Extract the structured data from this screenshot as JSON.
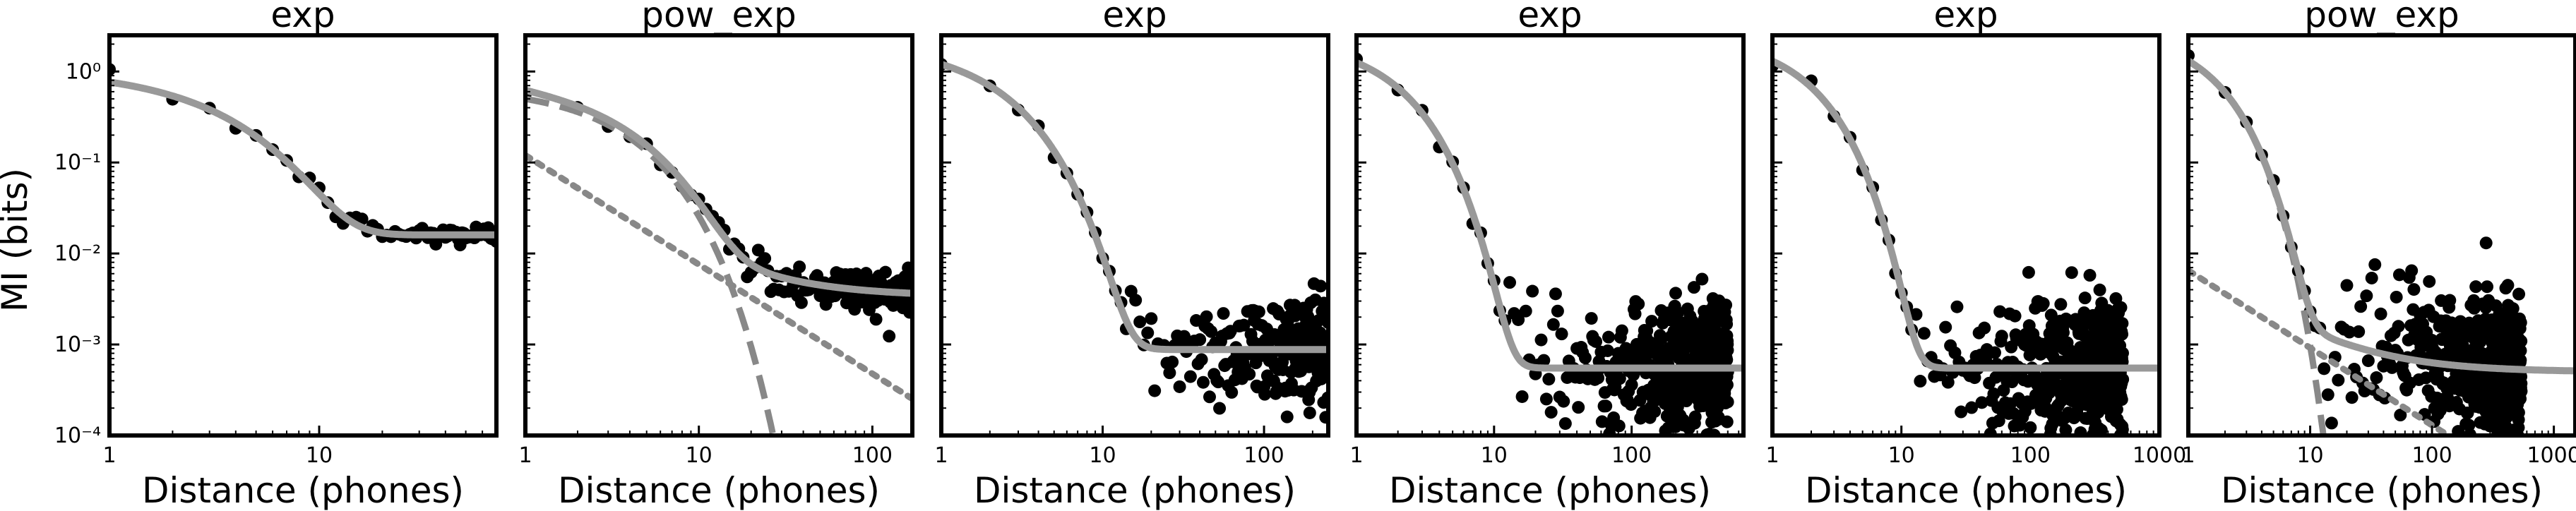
{
  "figure": {
    "ylabel": "MI (bits)",
    "y_tick_labels": [
      "10⁻⁴",
      "10⁻³",
      "10⁻²",
      "10⁻¹",
      "10⁰"
    ]
  },
  "chart_data": [
    {
      "type": "scatter",
      "title": "exp",
      "xlabel": "Distance (phones)",
      "ylabel": "MI (bits)",
      "x_scale": "log",
      "y_scale": "log",
      "xlim": [
        1,
        70
      ],
      "ylim": [
        0.0001,
        2.5
      ],
      "x_tick_labels": [
        "1",
        "10"
      ],
      "x_ticks": [
        1,
        10
      ],
      "points_profile": {
        "n": 70,
        "floor": 0.016,
        "spread_dex": 0.06,
        "fit": {
          "a0": 0.75,
          "k": 0.36
        }
      },
      "fit_line": {
        "color": "#999999",
        "style": "solid",
        "model": "exp",
        "a0": 0.75,
        "k": 0.36,
        "floor": 0.016
      }
    },
    {
      "type": "scatter",
      "title": "pow_exp",
      "xlabel": "Distance (phones)",
      "x_scale": "log",
      "y_scale": "log",
      "xlim": [
        1,
        170
      ],
      "ylim": [
        0.0001,
        2.5
      ],
      "x_tick_labels": [
        "1",
        "10",
        "100"
      ],
      "x_ticks": [
        1,
        10,
        100
      ],
      "points_profile": {
        "n": 170,
        "floor": 0.0034,
        "spread_dex": 0.12
      },
      "fit_line": {
        "color": "#999999",
        "style": "solid",
        "model": "pow_exp",
        "a0": 0.5,
        "k": 0.33,
        "b": 0.12,
        "p": 1.2,
        "floor": 0.0034
      },
      "component_lines": [
        {
          "style": "dashed",
          "model": "exp",
          "a0": 0.5,
          "k": 0.33
        },
        {
          "style": "dotted",
          "model": "pow",
          "b": 0.12,
          "p": 1.2
        }
      ]
    },
    {
      "type": "scatter",
      "title": "exp",
      "xlabel": "Distance (phones)",
      "x_scale": "log",
      "y_scale": "log",
      "xlim": [
        1,
        250
      ],
      "ylim": [
        0.0001,
        2.5
      ],
      "x_tick_labels": [
        "1",
        "10",
        "100"
      ],
      "x_ticks": [
        1,
        10,
        100
      ],
      "points_profile": {
        "n": 250,
        "floor": 0.00088,
        "spread_dex": 0.3
      },
      "fit_line": {
        "color": "#999999",
        "style": "solid",
        "model": "exp",
        "a0": 1.2,
        "k": 0.55,
        "floor": 0.00088
      }
    },
    {
      "type": "scatter",
      "title": "exp",
      "xlabel": "Distance (phones)",
      "x_scale": "log",
      "y_scale": "log",
      "xlim": [
        1,
        650
      ],
      "ylim": [
        0.0001,
        2.5
      ],
      "x_tick_labels": [
        "1",
        "10",
        "100"
      ],
      "x_ticks": [
        1,
        10,
        100
      ],
      "points_profile": {
        "n": 500,
        "floor": 0.00055,
        "spread_dex": 0.35
      },
      "fit_line": {
        "color": "#999999",
        "style": "solid",
        "model": "exp",
        "a0": 1.25,
        "k": 0.64,
        "floor": 0.00055
      }
    },
    {
      "type": "scatter",
      "title": "exp",
      "xlabel": "Distance (phones)",
      "x_scale": "log",
      "y_scale": "log",
      "xlim": [
        1,
        1000
      ],
      "ylim": [
        0.0001,
        2.5
      ],
      "x_tick_labels": [
        "1",
        "10",
        "100",
        "1000"
      ],
      "x_ticks": [
        1,
        10,
        100,
        1000
      ],
      "points_profile": {
        "n": 520,
        "floor": 0.00055,
        "spread_dex": 0.35
      },
      "fit_line": {
        "color": "#999999",
        "style": "solid",
        "model": "exp",
        "a0": 1.3,
        "k": 0.66,
        "floor": 0.00055
      }
    },
    {
      "type": "scatter",
      "title": "pow_exp",
      "xlabel": "Distance (phones)",
      "x_scale": "log",
      "y_scale": "log",
      "xlim": [
        1,
        1500
      ],
      "ylim": [
        0.0001,
        2.5
      ],
      "x_tick_labels": [
        "1",
        "10",
        "100",
        "1000"
      ],
      "x_ticks": [
        1,
        10,
        100,
        1000
      ],
      "points_profile": {
        "n": 540,
        "floor": 0.00055,
        "spread_dex": 0.4
      },
      "fit_line": {
        "color": "#999999",
        "style": "solid",
        "model": "pow_exp",
        "a0": 1.3,
        "k": 0.8,
        "b": 0.0065,
        "p": 0.85,
        "floor": 0.0005
      },
      "component_lines": [
        {
          "style": "dashed",
          "model": "exp",
          "a0": 1.3,
          "k": 0.8
        },
        {
          "style": "dotted",
          "model": "pow",
          "b": 0.0065,
          "p": 0.85
        }
      ]
    }
  ]
}
